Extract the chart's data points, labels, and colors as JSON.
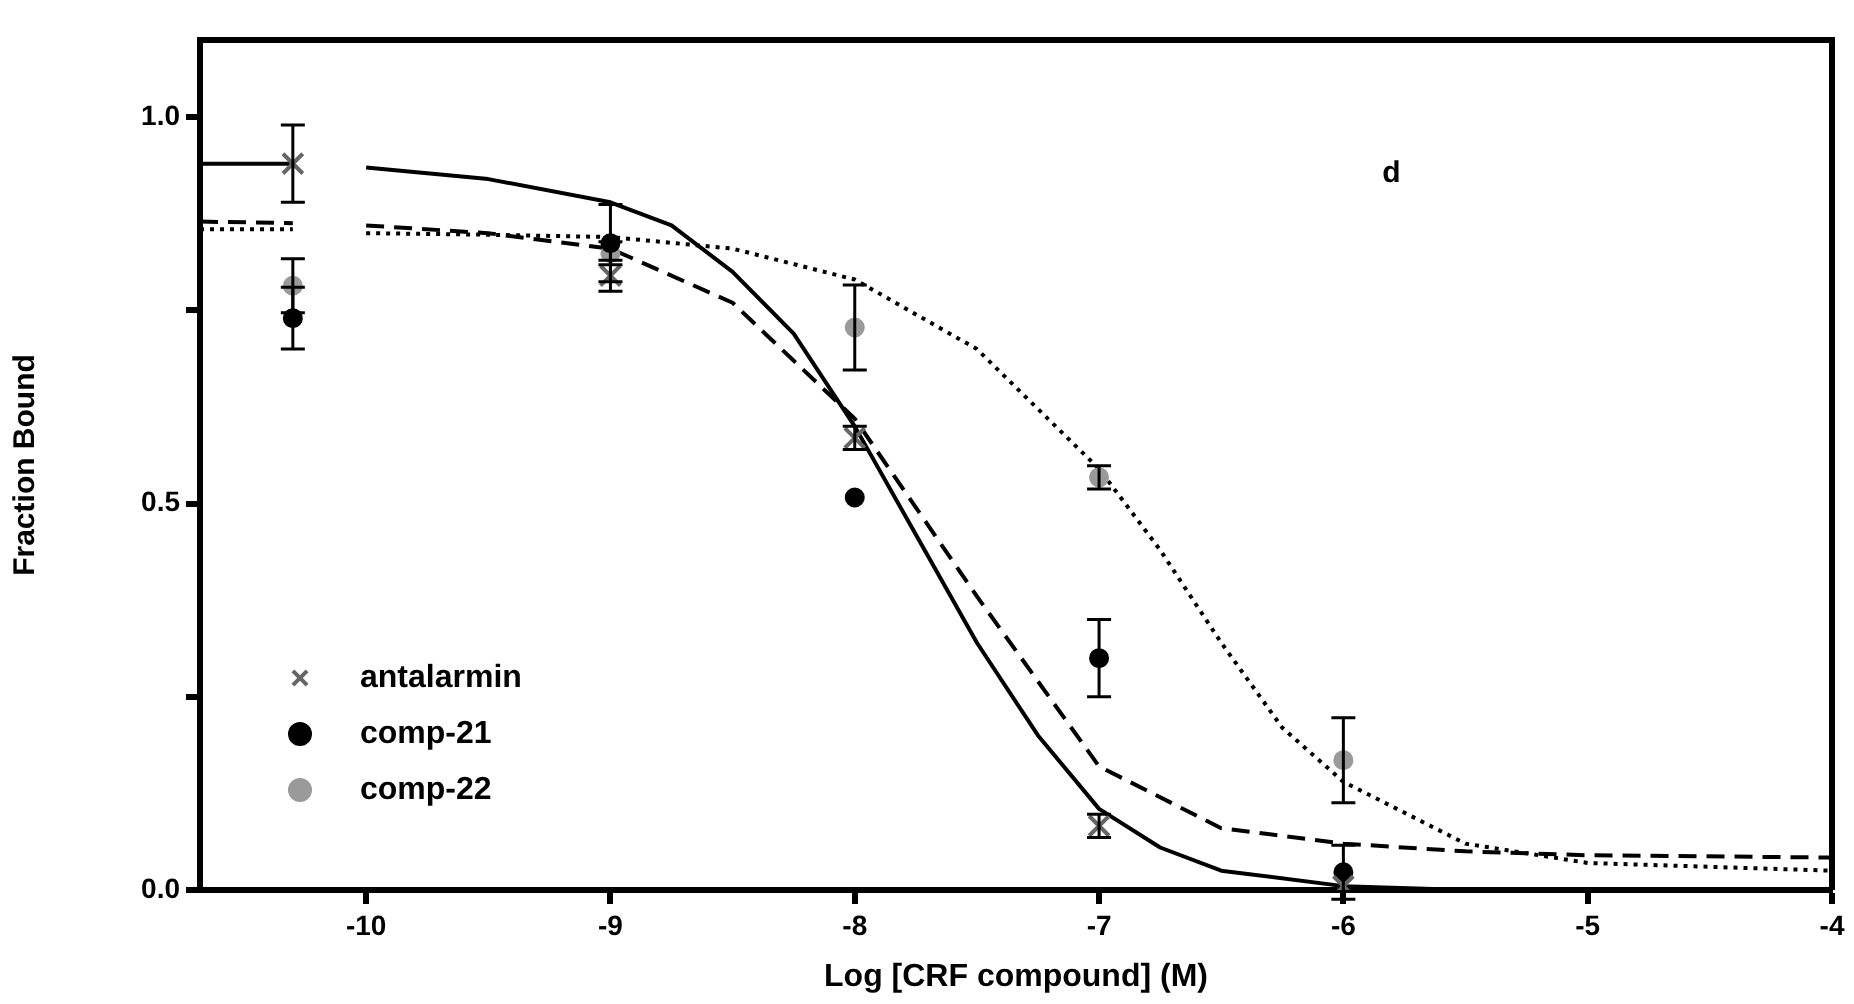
{
  "chart_data": {
    "type": "scatter",
    "xlabel": "Log [CRF compound] (M)",
    "ylabel": "Fraction Bound",
    "annotations": [
      "d"
    ],
    "xlim": [
      -10.68,
      -4
    ],
    "xticks": [
      -10,
      -9,
      -8,
      -7,
      -6,
      -5,
      -4
    ],
    "ylim": [
      0,
      1.1
    ],
    "yticks": [
      {
        "value": 0,
        "label": "0.0"
      },
      {
        "value": 0.25,
        "label": null
      },
      {
        "value": 0.5,
        "label": "0.5"
      },
      {
        "value": 0.75,
        "label": null
      },
      {
        "value": 1,
        "label": "1.0"
      }
    ],
    "grid": false,
    "legend": "bottom left",
    "series": [
      {
        "name": "antalarmin",
        "marker": "cross",
        "color": "#666666",
        "x": [
          -10.3,
          -9,
          -8,
          -7,
          -6
        ],
        "values": [
          0.94,
          0.795,
          0.585,
          0.083,
          0.005
        ],
        "errors": [
          0.05,
          0.02,
          0.015,
          0.015,
          null
        ]
      },
      {
        "name": "comp-21",
        "marker": "circle",
        "color": "#000000",
        "x": [
          -10.3,
          -9,
          -8,
          -7,
          -6
        ],
        "values": [
          0.74,
          0.837,
          0.508,
          0.3,
          0.023
        ],
        "errors": [
          0.04,
          0.05,
          null,
          0.05,
          0.035
        ]
      },
      {
        "name": "comp-22",
        "marker": "circle",
        "color": "#9a9a9a",
        "x": [
          -10.3,
          -9,
          -8,
          -7,
          -6
        ],
        "values": [
          0.782,
          0.824,
          0.728,
          0.534,
          0.168
        ],
        "errors": [
          0.035,
          0.015,
          0.055,
          0.015,
          0.055
        ]
      },
      {
        "type": "line",
        "line_style": "solid",
        "marker": "none",
        "color": "#000000",
        "x": [
          -10.68,
          -10.3,
          -10.15,
          -10,
          -9.5,
          -9,
          -8.75,
          -8.5,
          -8.25,
          -8,
          -7.75,
          -7.5,
          -7.25,
          -7,
          -6.75,
          -6.5,
          -6,
          -5.5,
          -4
        ],
        "values": [
          0.94,
          0.94,
          null,
          0.935,
          0.92,
          0.89,
          0.86,
          0.8,
          0.72,
          0.6,
          0.46,
          0.32,
          0.2,
          0.105,
          0.055,
          0.025,
          0.005,
          0,
          0
        ]
      },
      {
        "type": "line",
        "line_style": "dashed",
        "marker": "none",
        "color": "#000000",
        "x": [
          -10.68,
          -10.3,
          -10.15,
          -10,
          -9.5,
          -9,
          -8.5,
          -8,
          -7.5,
          -7,
          -6.5,
          -6,
          -5.5,
          -5,
          -4
        ],
        "values": [
          0.865,
          0.863,
          null,
          0.86,
          0.85,
          0.83,
          0.76,
          0.61,
          0.38,
          0.16,
          0.08,
          0.06,
          0.05,
          0.045,
          0.042
        ]
      },
      {
        "type": "line",
        "line_style": "dotted",
        "marker": "none",
        "color": "#000000",
        "x": [
          -10.68,
          -10.3,
          -10.15,
          -10,
          -9.5,
          -9,
          -8.5,
          -8,
          -7.5,
          -7,
          -6.75,
          -6.5,
          -6.25,
          -6,
          -5.5,
          -5,
          -4
        ],
        "values": [
          0.855,
          0.855,
          null,
          0.85,
          0.848,
          0.845,
          0.83,
          0.79,
          0.7,
          0.545,
          0.44,
          0.32,
          0.21,
          0.14,
          0.06,
          0.035,
          0.025
        ]
      }
    ]
  }
}
